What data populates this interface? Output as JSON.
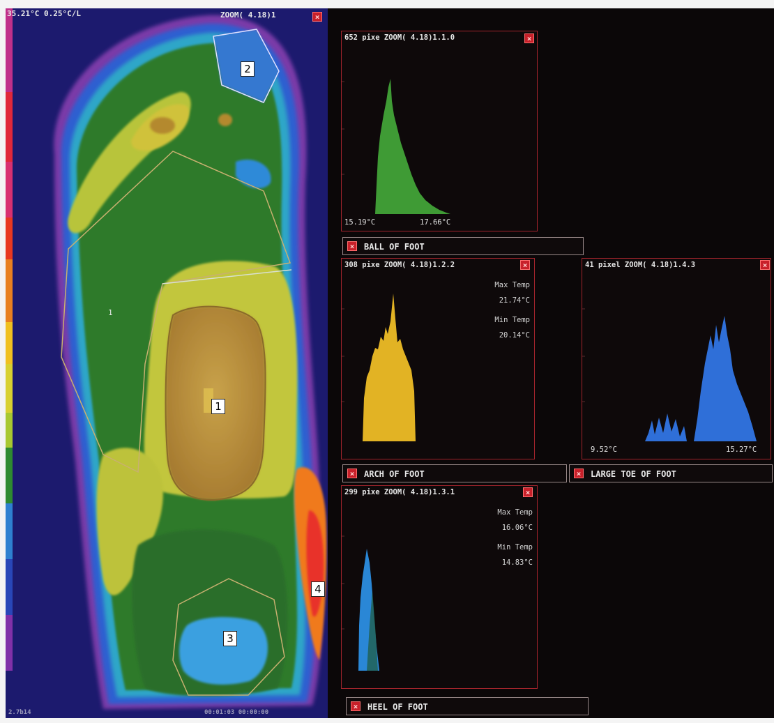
{
  "thermal": {
    "top_left_readout": "35.21°C 0.25°C/L",
    "zoom_readout": "ZOOM( 4.18)1",
    "roi_label": "1",
    "bottom_left": "2.7b14",
    "bottom_mid": "00:01:03 00:00:00"
  },
  "callouts": [
    "1",
    "2",
    "3",
    "4"
  ],
  "panels": {
    "toe_hist": {
      "header": "652 pixe ZOOM( 4.18)1.1.0",
      "min_label": "15.19°C",
      "max_label": "17.66°C",
      "color": "#3f9b35"
    },
    "ball_hist": {
      "header": "308 pixe ZOOM( 4.18)1.2.2",
      "max_temp_label": "Max Temp",
      "max_temp": "21.74°C",
      "min_temp_label": "Min Temp",
      "min_temp": "20.14°C",
      "color": "#e2b324"
    },
    "large_toe_hist": {
      "header": "41 pixel ZOOM( 4.18)1.4.3",
      "min_label": "9.52°C",
      "max_label": "15.27°C",
      "color": "#2f6fd8"
    },
    "heel_hist": {
      "header": "299 pixe ZOOM( 4.18)1.3.1",
      "max_temp_label": "Max Temp",
      "max_temp": "16.06°C",
      "min_temp_label": "Min Temp",
      "min_temp": "14.83°C",
      "color": "#2a87d6"
    }
  },
  "labels": {
    "ball": "BALL OF FOOT",
    "arch": "ARCH OF FOOT",
    "large_toe": "LARGE TOE OF FOOT",
    "heel": "HEEL OF FOOT"
  }
}
